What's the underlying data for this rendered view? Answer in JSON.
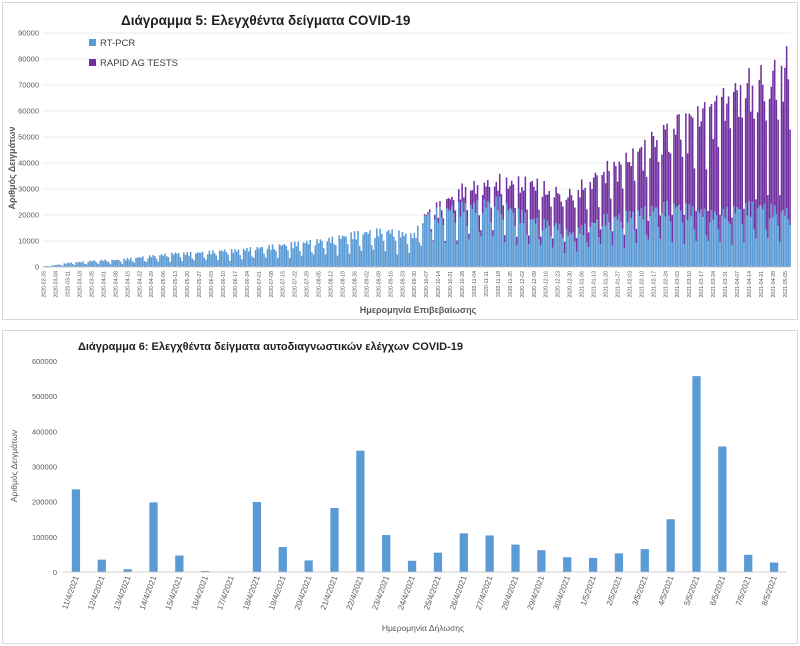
{
  "chart_data": [
    {
      "id": "chart5",
      "type": "bar",
      "stacked": true,
      "title": "Διάγραμμα 5: Ελεγχθέντα δείγματα COVID-19",
      "xlabel": "Ημερομηνία Επιβεβαίωσης",
      "ylabel": "Αριθμός Δειγμάτων",
      "ylim": [
        0,
        90000
      ],
      "yticks": [
        0,
        10000,
        20000,
        30000,
        40000,
        50000,
        60000,
        70000,
        80000,
        90000
      ],
      "grid": true,
      "legend_position": "top-left",
      "x_start": "2020-02-26",
      "x_end": "2021-05-08",
      "tick_labels": [
        "2020-02-26",
        "2020-03-04",
        "2020-03-11",
        "2020-03-18",
        "2020-03-25",
        "2020-04-01",
        "2020-04-08",
        "2020-04-15",
        "2020-04-22",
        "2020-04-29",
        "2020-05-06",
        "2020-05-13",
        "2020-05-20",
        "2020-05-27",
        "2020-06-03",
        "2020-06-10",
        "2020-06-17",
        "2020-06-24",
        "2020-07-01",
        "2020-07-08",
        "2020-07-15",
        "2020-07-22",
        "2020-07-29",
        "2020-08-05",
        "2020-08-12",
        "2020-08-19",
        "2020-08-26",
        "2020-09-02",
        "2020-09-09",
        "2020-09-16",
        "2020-09-23",
        "2020-09-30",
        "2020-10-07",
        "2020-10-14",
        "2020-10-21",
        "2020-10-28",
        "2020-11-04",
        "2020-11-11",
        "2020-11-18",
        "2020-11-25",
        "2020-12-02",
        "2020-12-09",
        "2020-12-16",
        "2020-12-23",
        "2020-12-30",
        "2021-01-06",
        "2021-01-13",
        "2021-01-20",
        "2021-01-27",
        "2021-02-03",
        "2021-02-10",
        "2021-02-17",
        "2021-02-24",
        "2021-03-03",
        "2021-03-10",
        "2021-03-17",
        "2021-03-24",
        "2021-03-31",
        "2021-04-07",
        "2021-04-14",
        "2021-04-21",
        "2021-04-28",
        "2021-05-05"
      ],
      "series": [
        {
          "name": "RT-PCR",
          "color": "#5b9bd5",
          "weekly_level_by_tick": [
            300,
            700,
            1500,
            1800,
            2200,
            2500,
            2500,
            3000,
            3500,
            4000,
            4500,
            5000,
            5000,
            5200,
            5500,
            6000,
            6000,
            6500,
            7000,
            7500,
            8000,
            8500,
            9000,
            9500,
            10000,
            11000,
            12000,
            12500,
            13000,
            13000,
            12000,
            11500,
            19000,
            20000,
            21000,
            22000,
            22000,
            23000,
            24000,
            21000,
            19000,
            17000,
            16000,
            15000,
            12000,
            14000,
            16000,
            18000,
            18000,
            19000,
            20000,
            21000,
            22000,
            22000,
            21000,
            20000,
            19000,
            20000,
            21000,
            22000,
            22000,
            21000,
            20000
          ]
        },
        {
          "name": "RAPID AG TESTS",
          "color": "#7030a0",
          "weekly_level_by_tick": [
            0,
            0,
            0,
            0,
            0,
            0,
            0,
            0,
            0,
            0,
            0,
            0,
            0,
            0,
            0,
            0,
            0,
            0,
            0,
            0,
            0,
            0,
            0,
            0,
            0,
            0,
            0,
            0,
            0,
            0,
            0,
            0,
            500,
            2000,
            4000,
            6000,
            7000,
            7000,
            7000,
            9000,
            11000,
            13000,
            12000,
            12000,
            14000,
            15000,
            16000,
            17000,
            18000,
            20000,
            22000,
            25000,
            28000,
            30000,
            32000,
            35000,
            38000,
            40000,
            42000,
            44000,
            45000,
            48000,
            52000
          ]
        }
      ]
    },
    {
      "id": "chart6",
      "type": "bar",
      "title": "Διάγραμμα 6: Ελεγχθέντα δείγματα αυτοδιαγνωστικών ελέγχων COVID-19",
      "xlabel": "Ημερομηνία Δήλωσης",
      "ylabel": "Αριθμός Δειγμάτων",
      "ylim": [
        0,
        600000
      ],
      "yticks": [
        0,
        100000,
        200000,
        300000,
        400000,
        500000,
        600000
      ],
      "grid": false,
      "color": "#5b9bd5",
      "categories": [
        "11/4/2021",
        "12/4/2021",
        "13/4/2021",
        "14/4/2021",
        "15/4/2021",
        "16/4/2021",
        "17/4/2021",
        "18/4/2021",
        "19/4/2021",
        "20/4/2021",
        "21/4/2021",
        "22/4/2021",
        "23/4/2021",
        "24/4/2021",
        "25/4/2021",
        "26/4/2021",
        "27/4/2021",
        "28/4/2021",
        "29/4/2021",
        "30/4/2021",
        "1/5/2021",
        "2/5/2021",
        "3/5/2021",
        "4/5/2021",
        "5/5/2021",
        "6/5/2021",
        "7/5/2021",
        "8/5/2021"
      ],
      "values": [
        235000,
        35000,
        8000,
        198000,
        47000,
        3000,
        1000,
        199000,
        71000,
        33000,
        182000,
        345000,
        105000,
        32000,
        55000,
        110000,
        104000,
        78000,
        62000,
        42000,
        40000,
        53000,
        65000,
        150000,
        557000,
        357000,
        49000,
        27000
      ]
    }
  ]
}
